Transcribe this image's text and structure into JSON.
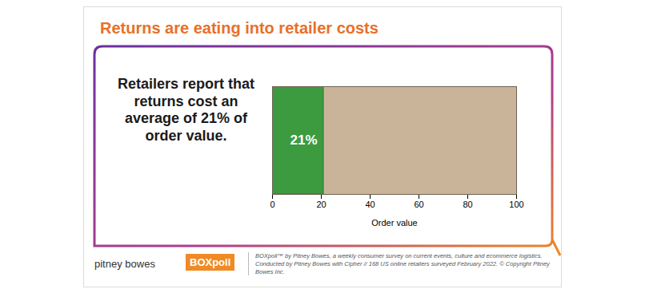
{
  "chart_data": {
    "type": "bar",
    "orientation": "horizontal",
    "title": "Returns are eating into retailer costs",
    "annotation": "Retailers report that returns cost an average of 21% of order value.",
    "categories": [
      null
    ],
    "values": [
      21
    ],
    "value_labels": [
      "21%"
    ],
    "data_labels": true,
    "color": "#3d9b3f",
    "xlabel": "Order value",
    "xlim": [
      0,
      100
    ],
    "xticks": [
      0,
      20,
      40,
      60,
      80,
      100
    ],
    "tick_labels": "x",
    "brand": "pitney bowes",
    "badge": "BOXpoll",
    "source": "BOXpoll™ by Pitney Bowes, a weekly consumer survey on current events, culture and ecommerce logistics. Conducted by Pitney Bowes with Cipher // 168 US online retailers surveyed February 2022. © Copyright Pitney Bowes Inc."
  }
}
